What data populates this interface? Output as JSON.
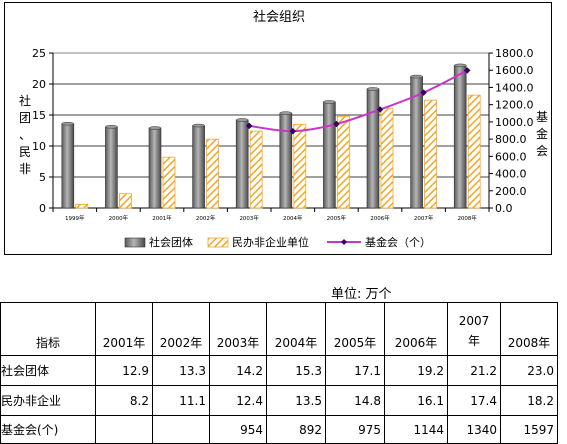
{
  "chart_data": {
    "type": "bar",
    "title": "社会组织",
    "categories": [
      "1999年",
      "2000年",
      "2001年",
      "2002年",
      "2003年",
      "2004年",
      "2005年",
      "2006年",
      "2007年",
      "2008年"
    ],
    "series": [
      {
        "name": "社会团体",
        "kind": "bar",
        "axis": "left",
        "color": "#808080",
        "values": [
          13.6,
          13.1,
          12.9,
          13.3,
          14.2,
          15.3,
          17.1,
          19.2,
          21.2,
          23.0
        ]
      },
      {
        "name": "民办非企业单位",
        "kind": "bar",
        "axis": "left",
        "color": "#f5a623",
        "values": [
          0.6,
          2.3,
          8.2,
          11.1,
          12.4,
          13.5,
          14.8,
          16.1,
          17.4,
          18.2
        ]
      },
      {
        "name": "基金会（个）",
        "kind": "line",
        "axis": "right",
        "color": "#cc33cc",
        "values": [
          null,
          null,
          null,
          null,
          954,
          892,
          975,
          1144,
          1340,
          1597
        ]
      }
    ],
    "ylabel_left": "社团、民非",
    "ylabel_right": "基金会",
    "ylim_left": [
      0,
      25
    ],
    "yticks_left": [
      "0",
      "5",
      "10",
      "15",
      "20",
      "25"
    ],
    "ylim_right": [
      0,
      1800
    ],
    "yticks_right": [
      "0.0",
      "200.0",
      "400.0",
      "600.0",
      "800.0",
      "1000.0",
      "1200.0",
      "1400.0",
      "1600.0",
      "1800.0"
    ],
    "grid": true,
    "legend_position": "bottom"
  },
  "unit_label": "单位: 万个",
  "table": {
    "header_label": "指标",
    "years": [
      "2001年",
      "2002年",
      "2003年",
      "2004年",
      "2005年",
      "2006年",
      "2007\n年",
      "2008年"
    ],
    "rows": [
      {
        "label": "社会团体",
        "values": [
          "12.9",
          "13.3",
          "14.2",
          "15.3",
          "17.1",
          "19.2",
          "21.2",
          "23.0"
        ]
      },
      {
        "label": "民办非企业",
        "values": [
          "8.2",
          "11.1",
          "12.4",
          "13.5",
          "14.8",
          "16.1",
          "17.4",
          "18.2"
        ]
      },
      {
        "label": "基金会(个)",
        "values": [
          "",
          "",
          "954",
          "892",
          "975",
          "1144",
          "1340",
          "1597"
        ]
      }
    ]
  }
}
